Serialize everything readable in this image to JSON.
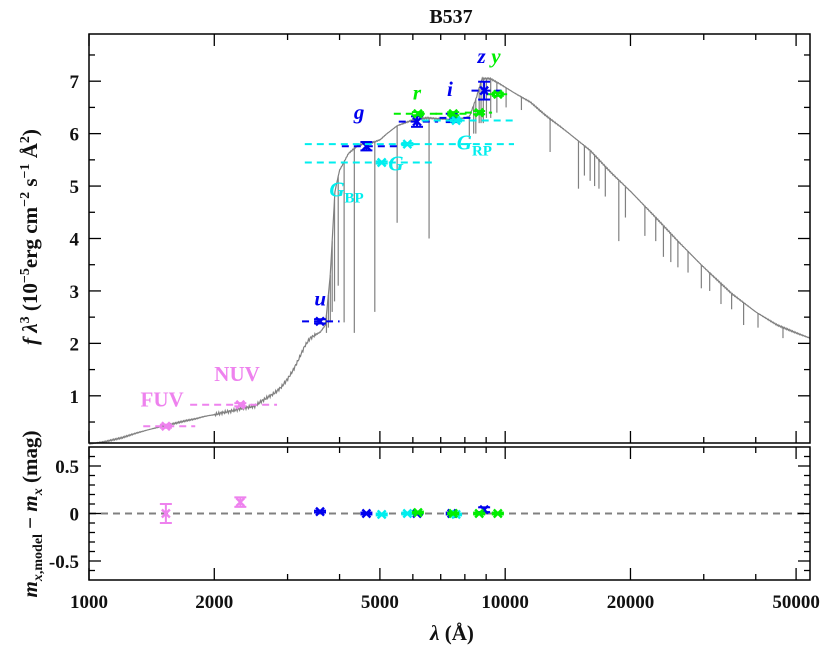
{
  "chart_data": [
    {
      "type": "scatter",
      "title": "B537",
      "xlabel": "λ (Å)",
      "ylabel": "fλ³ (10⁻⁵erg cm⁻² s⁻¹ Å²)",
      "xscale": "log",
      "xlim": [
        1000,
        54000
      ],
      "ylim": [
        0.1,
        7.9
      ],
      "xticks": [
        "1000",
        "2000",
        "5000",
        "10000",
        "20000",
        "50000"
      ],
      "xtick_values": [
        1000,
        2000,
        5000,
        10000,
        20000,
        50000
      ],
      "yticks": [
        "1",
        "2",
        "3",
        "4",
        "5",
        "6",
        "7"
      ],
      "ytick_values": [
        1,
        2,
        3,
        4,
        5,
        6,
        7
      ],
      "colors": {
        "fuv_nuv": "#ee82ee",
        "sdss": "#0000ee",
        "gaia": "#00eeee",
        "ps": "#00ee00",
        "model": "#808080"
      },
      "series": [
        {
          "color": "fuv_nuv",
          "points": [
            {
              "band": "FUV",
              "x": 1530,
              "y": 0.42,
              "xerr": [
                1350,
                1800
              ],
              "yerr": 0.03
            },
            {
              "band": "NUV",
              "x": 2310,
              "y": 0.83,
              "xerr": [
                1750,
                2830
              ],
              "yerr": 0.03
            }
          ]
        },
        {
          "color": "sdss",
          "points": [
            {
              "band": "u",
              "x": 3590,
              "y": 2.42,
              "xerr": [
                3250,
                4000
              ],
              "yerr": 0.04
            },
            {
              "band": "g",
              "x": 4640,
              "y": 5.76,
              "xerr": [
                4050,
                5500
              ],
              "yerr": 0.08
            },
            {
              "band": "r",
              "x": 6140,
              "y": 6.23,
              "xerr": [
                5550,
                6900
              ],
              "yerr": 0.1
            },
            {
              "band": "i",
              "x": 7440,
              "y": 6.3,
              "xerr": [
                6950,
                8400
              ],
              "yerr": 0.08
            },
            {
              "band": "z",
              "x": 8900,
              "y": 6.82,
              "xerr": [
                8300,
                9800
              ],
              "yerr": 0.17
            }
          ]
        },
        {
          "color": "gaia",
          "points": [
            {
              "band": "G_BP",
              "x": 5050,
              "y": 5.45,
              "xerr": [
                3300,
                6700
              ],
              "yerr": 0.02
            },
            {
              "band": "G",
              "x": 5820,
              "y": 5.8,
              "xerr": [
                3300,
                10500
              ],
              "yerr": 0.02
            },
            {
              "band": "G_RP",
              "x": 7620,
              "y": 6.25,
              "xerr": [
                6300,
                10500
              ],
              "yerr": 0.02
            }
          ]
        },
        {
          "color": "ps",
          "points": [
            {
              "band": "r",
              "x": 6170,
              "y": 6.38,
              "xerr": [
                5400,
                7000
              ],
              "yerr": 0.03
            },
            {
              "band": "i",
              "x": 7500,
              "y": 6.38,
              "xerr": [
                6800,
                8300
              ],
              "yerr": 0.03
            },
            {
              "band": "z",
              "x": 8660,
              "y": 6.4,
              "xerr": [
                8000,
                9300
              ],
              "yerr": 0.03
            },
            {
              "band": "y",
              "x": 9600,
              "y": 6.75,
              "xerr": [
                9100,
                10300
              ],
              "yerr": 0.03
            }
          ]
        }
      ],
      "labels": [
        {
          "text": "FUV",
          "x": 1330,
          "y": 0.8,
          "color": "fuv_nuv",
          "italic": false
        },
        {
          "text": "NUV",
          "x": 2000,
          "y": 1.28,
          "color": "fuv_nuv",
          "italic": false
        },
        {
          "text": "u",
          "x": 3480,
          "y": 2.72,
          "color": "sdss",
          "italic": true
        },
        {
          "text": "g",
          "x": 4330,
          "y": 6.28,
          "color": "sdss",
          "italic": true
        },
        {
          "text": "r",
          "x": 6000,
          "y": 6.65,
          "color": "ps",
          "italic": true
        },
        {
          "text": "i",
          "x": 7250,
          "y": 6.72,
          "color": "sdss",
          "italic": true
        },
        {
          "text": "z",
          "x": 8580,
          "y": 7.35,
          "color": "sdss",
          "italic": true
        },
        {
          "text": "y",
          "x": 9260,
          "y": 7.35,
          "color": "ps",
          "italic": true
        },
        {
          "text": "G",
          "x": 5240,
          "y": 5.3,
          "color": "gaia",
          "italic": true,
          "sub": ""
        },
        {
          "text": "G",
          "x": 7650,
          "y": 5.7,
          "color": "gaia",
          "italic": true,
          "sub": "RP"
        },
        {
          "text": "G",
          "x": 3780,
          "y": 4.8,
          "color": "gaia",
          "italic": true,
          "sub": "BP"
        }
      ],
      "model_spectrum": {
        "color": "model",
        "continuum": [
          [
            1000,
            0.08
          ],
          [
            1100,
            0.13
          ],
          [
            1200,
            0.2
          ],
          [
            1300,
            0.29
          ],
          [
            1400,
            0.36
          ],
          [
            1500,
            0.42
          ],
          [
            1600,
            0.47
          ],
          [
            1700,
            0.52
          ],
          [
            1800,
            0.56
          ],
          [
            1900,
            0.61
          ],
          [
            2000,
            0.64
          ],
          [
            2100,
            0.68
          ],
          [
            2200,
            0.71
          ],
          [
            2300,
            0.75
          ],
          [
            2400,
            0.78
          ],
          [
            2500,
            0.8
          ],
          [
            2600,
            0.9
          ],
          [
            2700,
            0.98
          ],
          [
            2800,
            1.06
          ],
          [
            2900,
            1.17
          ],
          [
            3000,
            1.32
          ],
          [
            3100,
            1.5
          ],
          [
            3200,
            1.72
          ],
          [
            3300,
            1.95
          ],
          [
            3400,
            2.1
          ],
          [
            3600,
            2.22
          ],
          [
            3700,
            2.35
          ],
          [
            3800,
            3.3
          ],
          [
            3900,
            4.9
          ],
          [
            4000,
            5.3
          ],
          [
            4200,
            5.62
          ],
          [
            4400,
            5.76
          ],
          [
            4600,
            5.82
          ],
          [
            4800,
            5.83
          ],
          [
            5000,
            5.88
          ],
          [
            5200,
            6.0
          ],
          [
            5500,
            6.15
          ],
          [
            6000,
            6.26
          ],
          [
            6500,
            6.3
          ],
          [
            7000,
            6.28
          ],
          [
            7500,
            6.27
          ],
          [
            8000,
            6.3
          ],
          [
            8200,
            6.32
          ],
          [
            8500,
            6.65
          ],
          [
            8800,
            7.05
          ],
          [
            9200,
            7.05
          ],
          [
            9700,
            6.95
          ],
          [
            10500,
            6.78
          ],
          [
            11500,
            6.6
          ],
          [
            12500,
            6.35
          ],
          [
            14000,
            6.05
          ],
          [
            16000,
            5.68
          ],
          [
            18000,
            5.25
          ],
          [
            20000,
            4.9
          ],
          [
            23000,
            4.4
          ],
          [
            26000,
            3.95
          ],
          [
            30000,
            3.45
          ],
          [
            35000,
            2.95
          ],
          [
            40000,
            2.6
          ],
          [
            45000,
            2.35
          ],
          [
            50000,
            2.2
          ],
          [
            54000,
            2.1
          ]
        ],
        "absorption_lines": [
          [
            3650,
            2.3
          ],
          [
            3720,
            2.2
          ],
          [
            3760,
            2.3
          ],
          [
            3800,
            2.4
          ],
          [
            3840,
            2.6
          ],
          [
            3890,
            2.8
          ],
          [
            3970,
            3.1
          ],
          [
            4102,
            2.4
          ],
          [
            4340,
            2.2
          ],
          [
            4861,
            2.6
          ],
          [
            5500,
            4.3
          ],
          [
            6563,
            4.0
          ],
          [
            8200,
            5.9
          ],
          [
            8400,
            6.0
          ],
          [
            8500,
            6.0
          ],
          [
            8660,
            6.2
          ],
          [
            8750,
            6.2
          ],
          [
            8860,
            6.2
          ],
          [
            9015,
            6.3
          ],
          [
            9230,
            6.3
          ],
          [
            9550,
            6.4
          ],
          [
            10050,
            6.5
          ],
          [
            10940,
            6.45
          ],
          [
            12820,
            5.65
          ],
          [
            15000,
            4.95
          ],
          [
            15500,
            5.2
          ],
          [
            16000,
            5.1
          ],
          [
            16400,
            5.0
          ],
          [
            16800,
            4.95
          ],
          [
            17400,
            4.8
          ],
          [
            18750,
            3.95
          ],
          [
            19450,
            4.4
          ],
          [
            21660,
            4.05
          ],
          [
            23000,
            3.95
          ],
          [
            24000,
            3.65
          ],
          [
            25000,
            3.55
          ],
          [
            26000,
            3.45
          ],
          [
            27500,
            3.35
          ],
          [
            29600,
            3.05
          ],
          [
            31000,
            3.0
          ],
          [
            33000,
            2.75
          ],
          [
            35000,
            2.65
          ],
          [
            37400,
            2.35
          ],
          [
            40500,
            2.3
          ],
          [
            46500,
            2.1
          ]
        ]
      }
    },
    {
      "type": "scatter",
      "xlabel": "λ (Å)",
      "ylabel": "m_x,model − m_x (mag)",
      "xscale": "log",
      "xlim": [
        1000,
        54000
      ],
      "ylim": [
        -0.7,
        0.7
      ],
      "yticks": [
        "-0.5",
        "0",
        "0.5"
      ],
      "ytick_values": [
        -0.5,
        0,
        0.5
      ],
      "reference_line": 0,
      "series": [
        {
          "color": "fuv_nuv",
          "points": [
            {
              "band": "FUV",
              "x": 1530,
              "y": 0.0,
              "yerr": 0.1
            },
            {
              "band": "NUV",
              "x": 2310,
              "y": 0.12,
              "yerr": 0.05
            }
          ]
        },
        {
          "color": "sdss",
          "points": [
            {
              "band": "u",
              "x": 3590,
              "y": 0.02,
              "yerr": 0.01
            },
            {
              "band": "g",
              "x": 4640,
              "y": 0.0,
              "yerr": 0.01
            },
            {
              "band": "r",
              "x": 6140,
              "y": 0.0,
              "yerr": 0.01
            },
            {
              "band": "i",
              "x": 7440,
              "y": 0.0,
              "yerr": 0.01
            },
            {
              "band": "z",
              "x": 8900,
              "y": 0.04,
              "yerr": 0.025
            }
          ]
        },
        {
          "color": "gaia",
          "points": [
            {
              "band": "G_BP",
              "x": 5050,
              "y": -0.01,
              "yerr": 0.01
            },
            {
              "band": "G",
              "x": 5820,
              "y": 0.0,
              "yerr": 0.01
            },
            {
              "band": "G_RP",
              "x": 7620,
              "y": -0.01,
              "yerr": 0.01
            }
          ]
        },
        {
          "color": "ps",
          "points": [
            {
              "band": "r",
              "x": 6170,
              "y": 0.01,
              "yerr": 0.01
            },
            {
              "band": "i",
              "x": 7500,
              "y": 0.0,
              "yerr": 0.01
            },
            {
              "band": "z",
              "x": 8660,
              "y": 0.0,
              "yerr": 0.01
            },
            {
              "band": "y",
              "x": 9600,
              "y": 0.0,
              "yerr": 0.01
            }
          ]
        }
      ]
    }
  ]
}
